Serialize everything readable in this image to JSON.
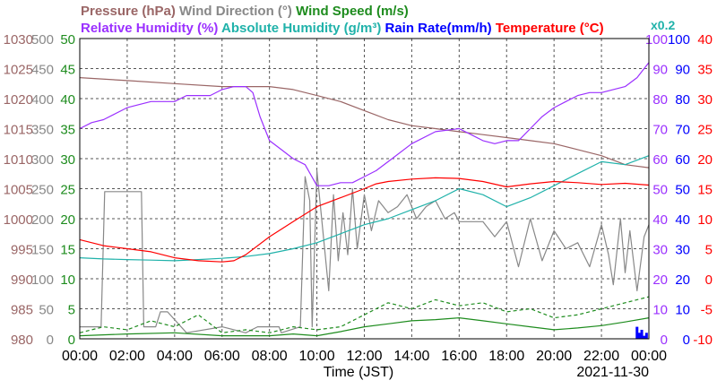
{
  "chart_data": {
    "type": "line",
    "title_lines": [
      [
        {
          "text": "Pressure (hPa)",
          "color": "#9a6666"
        },
        {
          "text": "Wind Direction (°)",
          "color": "#888888"
        },
        {
          "text": "Wind Speed (m/s)",
          "color": "#1e8c1e"
        }
      ],
      [
        {
          "text": "Relative Humidity (%)",
          "color": "#9b30ff"
        },
        {
          "text": "Absolute Humidity (g/m³)",
          "color": "#20b2aa"
        },
        {
          "text": "Rain Rate(mm/h)",
          "color": "#0000ff"
        },
        {
          "text": "Temperature (°C)",
          "color": "#ff0000"
        }
      ]
    ],
    "multiplier_label": "x0.2",
    "xlabel": "Time (JST)",
    "date": "2021-11-30",
    "x_ticks": [
      "00:00",
      "02:00",
      "04:00",
      "06:00",
      "08:00",
      "10:00",
      "12:00",
      "14:00",
      "16:00",
      "18:00",
      "20:00",
      "22:00",
      "00:00"
    ],
    "xlim": [
      0,
      24
    ],
    "grid": true,
    "axes": [
      {
        "name": "Pressure",
        "color": "#9a6666",
        "range": [
          980,
          1030
        ],
        "ticks": [
          "980",
          "985",
          "990",
          "995",
          "1000",
          "1005",
          "1010",
          "1015",
          "1020",
          "1025",
          "1030"
        ]
      },
      {
        "name": "Wind Direction",
        "color": "#888888",
        "range": [
          0,
          500
        ],
        "ticks": [
          "0",
          "50",
          "100",
          "150",
          "200",
          "250",
          "300",
          "350",
          "400",
          "450",
          "500"
        ]
      },
      {
        "name": "Wind Speed",
        "color": "#1e8c1e",
        "range": [
          0,
          50
        ],
        "ticks": [
          "0",
          "5",
          "10",
          "15",
          "20",
          "25",
          "30",
          "35",
          "40",
          "45",
          "50"
        ]
      },
      {
        "name": "Relative Humidity",
        "color": "#9b30ff",
        "range": [
          0,
          100
        ],
        "ticks": [
          "0",
          "10",
          "20",
          "30",
          "40",
          "50",
          "60",
          "70",
          "80",
          "90",
          "100"
        ]
      },
      {
        "name": "Rain Rate",
        "color": "#0000ff",
        "range": [
          0,
          100
        ],
        "ticks": [
          "0",
          "10",
          "20",
          "30",
          "40",
          "50",
          "60",
          "70",
          "80",
          "90",
          "100"
        ]
      },
      {
        "name": "Temperature",
        "color": "#ff0000",
        "range": [
          -10,
          40
        ],
        "ticks": [
          "-10",
          "-5",
          "0",
          "5",
          "10",
          "15",
          "20",
          "25",
          "30",
          "35",
          "40"
        ]
      }
    ],
    "series": [
      {
        "name": "Pressure",
        "axis": "Pressure",
        "color": "#9a6666",
        "x": [
          0,
          2,
          4,
          6,
          7,
          8,
          9,
          10,
          11,
          12,
          13,
          14,
          15,
          16,
          17,
          18,
          19,
          20,
          21,
          22,
          23,
          24
        ],
        "y": [
          1023.5,
          1023,
          1022.5,
          1022,
          1022,
          1022,
          1021.5,
          1020.5,
          1019.5,
          1018,
          1016.5,
          1015.5,
          1015,
          1014.5,
          1014,
          1013.5,
          1013,
          1012.5,
          1011.5,
          1010.5,
          1009,
          1008.5
        ]
      },
      {
        "name": "Wind Direction",
        "axis": "Wind Direction",
        "color": "#888888",
        "x": [
          0,
          0.9,
          1.05,
          2.6,
          2.7,
          3.2,
          3.4,
          3.7,
          4.5,
          6,
          7,
          7.5,
          8.4,
          8.5,
          9.3,
          9.5,
          9.7,
          9.8,
          10,
          10.2,
          10.5,
          10.7,
          10.9,
          11.1,
          11.3,
          11.5,
          11.7,
          12,
          12.3,
          12.6,
          13,
          13.4,
          13.8,
          14.2,
          14.6,
          15,
          15.4,
          15.8,
          16,
          16.5,
          17,
          17.5,
          18,
          18.5,
          19,
          19.5,
          20,
          20.5,
          21,
          21.5,
          22,
          22.3,
          22.5,
          22.8,
          23,
          23.2,
          23.5,
          23.8,
          24
        ],
        "y": [
          20,
          20,
          245,
          245,
          20,
          20,
          45,
          45,
          10,
          20,
          10,
          20,
          20,
          10,
          20,
          270,
          230,
          20,
          280,
          200,
          80,
          240,
          130,
          210,
          140,
          250,
          150,
          240,
          180,
          230,
          210,
          220,
          240,
          200,
          220,
          230,
          200,
          210,
          195,
          195,
          195,
          170,
          195,
          120,
          200,
          130,
          180,
          150,
          160,
          120,
          190,
          140,
          90,
          200,
          110,
          180,
          80,
          170,
          190
        ]
      },
      {
        "name": "Wind Speed",
        "axis": "Wind Speed",
        "color": "#1e8c1e",
        "x": [
          0,
          2,
          4,
          6,
          8,
          9,
          10,
          11,
          12,
          13,
          14,
          15,
          16,
          17,
          18,
          19,
          20,
          21,
          22,
          23,
          24
        ],
        "y": [
          0.5,
          0.8,
          1.0,
          0.5,
          0.5,
          0.8,
          0.5,
          1.2,
          2.0,
          2.5,
          3.0,
          3.2,
          3.5,
          3.0,
          2.5,
          2.0,
          1.5,
          1.8,
          2.2,
          2.8,
          3.5
        ]
      },
      {
        "name": "Wind Speed (gust)",
        "axis": "Wind Speed",
        "color": "#1e8c1e",
        "x": [
          0,
          1,
          2,
          3,
          4,
          5,
          6,
          7,
          8,
          9,
          10,
          11,
          12,
          13,
          14,
          15,
          16,
          17,
          18,
          19,
          20,
          21,
          22,
          23,
          24
        ],
        "y": [
          1,
          2,
          1.5,
          3,
          2,
          4,
          1,
          1.5,
          1,
          2,
          1.5,
          2,
          4,
          6,
          5,
          6.5,
          5.5,
          6,
          4.5,
          5,
          3.5,
          4,
          5,
          6,
          7
        ]
      },
      {
        "name": "Relative Humidity",
        "axis": "Relative Humidity",
        "color": "#9b30ff",
        "x": [
          0,
          0.5,
          1,
          2,
          2.5,
          3,
          3.5,
          4,
          4.5,
          5,
          5.5,
          6,
          6.5,
          7,
          7.3,
          7.6,
          8,
          8.5,
          9,
          9.5,
          10,
          10.5,
          11,
          11.5,
          12,
          12.5,
          13,
          14,
          15,
          16,
          16.5,
          17,
          17.5,
          18,
          18.5,
          19,
          19.5,
          20,
          20.5,
          21,
          21.5,
          22,
          22.5,
          23,
          23.5,
          24
        ],
        "y": [
          70,
          72,
          73,
          77,
          78,
          79,
          79,
          79,
          81,
          81,
          81,
          83,
          84,
          84,
          82,
          74,
          66,
          63,
          60,
          58,
          51,
          51,
          52,
          52,
          54,
          56,
          59,
          65,
          69,
          70,
          68,
          66,
          65,
          66,
          66,
          70,
          74,
          77,
          79,
          81,
          82,
          82,
          83,
          84,
          87,
          92
        ]
      },
      {
        "name": "Absolute Humidity",
        "axis": "Wind Speed",
        "color": "#20b2aa",
        "x": [
          0,
          1,
          2,
          3,
          4,
          5,
          6,
          7,
          8,
          9,
          10,
          11,
          12,
          13,
          14,
          15,
          16,
          17,
          18,
          19,
          20,
          21,
          22,
          23,
          24
        ],
        "y": [
          13.5,
          13.3,
          13.2,
          13.1,
          13,
          13.2,
          13.4,
          13.7,
          14.2,
          15,
          16,
          17.5,
          19,
          20,
          21.5,
          23,
          25,
          24,
          22,
          23.5,
          25.5,
          27.5,
          29.5,
          29,
          30.5
        ]
      },
      {
        "name": "Temperature",
        "axis": "Temperature",
        "color": "#ff0000",
        "x": [
          0,
          1,
          2,
          3,
          4,
          5,
          6,
          6.5,
          7,
          8,
          9,
          10,
          11,
          12,
          12.5,
          13,
          14,
          15,
          16,
          17,
          18,
          19,
          20,
          21,
          22,
          23,
          24
        ],
        "y": [
          6.5,
          5.5,
          5,
          4.5,
          3.5,
          3,
          2.8,
          3,
          4,
          7,
          9.5,
          12,
          13.5,
          15,
          15.8,
          16.2,
          16.6,
          16.8,
          16.7,
          16.2,
          15.3,
          15.8,
          16.2,
          16,
          15.7,
          15.9,
          15.6
        ]
      },
      {
        "name": "Rain Rate",
        "axis": "Rain Rate",
        "color": "#0000ff",
        "style": "bar",
        "x": [
          23.5,
          23.6,
          23.7,
          23.8,
          23.9
        ],
        "y": [
          4,
          2,
          3,
          1,
          2
        ]
      }
    ]
  }
}
